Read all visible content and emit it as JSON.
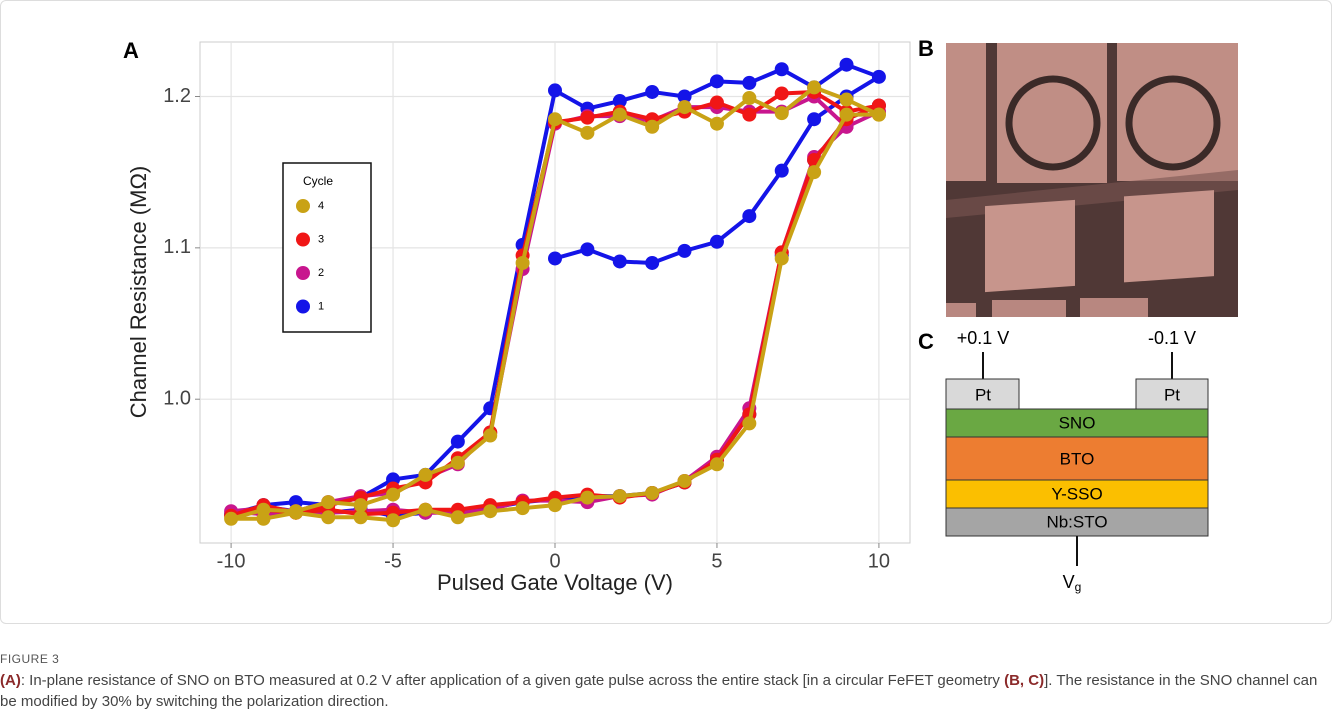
{
  "chart_data": {
    "type": "line",
    "panel": "A",
    "xlabel": "Pulsed Gate Voltage (V)",
    "ylabel": "Channel Resistance (MΩ)",
    "x": [
      0,
      1,
      2,
      3,
      4,
      5,
      6,
      7,
      8,
      9,
      10,
      9,
      8,
      7,
      6,
      5,
      4,
      3,
      2,
      1,
      0,
      -1,
      -2,
      -3,
      -4,
      -5,
      -6,
      -7,
      -8,
      -9,
      -10,
      -9,
      -8,
      -7,
      -6,
      -5,
      -4,
      -3,
      -2,
      -1,
      0,
      1,
      2,
      3,
      4,
      5,
      6,
      7,
      8,
      9,
      10
    ],
    "xlim": [
      -10.96,
      10.96
    ],
    "xticks": [
      -10,
      -5,
      0,
      5,
      10
    ],
    "ylim": [
      0.905,
      1.236
    ],
    "yticks": [
      {
        "value": 1,
        "label": "1.0"
      },
      1.1,
      1.2
    ],
    "grid": true,
    "legend_title": "Cycle",
    "series": [
      {
        "name": "4",
        "color": "#c9a215",
        "values": [
          null,
          null,
          null,
          null,
          null,
          null,
          null,
          null,
          null,
          null,
          1.188,
          1.198,
          1.206,
          1.189,
          1.199,
          1.182,
          1.193,
          1.18,
          1.188,
          1.176,
          1.185,
          1.09,
          0.976,
          0.958,
          0.95,
          0.937,
          0.93,
          0.932,
          0.926,
          0.927,
          0.921,
          0.921,
          0.925,
          0.922,
          0.922,
          0.92,
          0.927,
          0.922,
          0.926,
          0.928,
          0.93,
          0.935,
          0.936,
          0.938,
          0.946,
          0.957,
          0.984,
          1.093,
          1.15,
          1.188,
          1.188
        ]
      },
      {
        "name": "3",
        "color": "#f01616",
        "values": [
          null,
          null,
          null,
          null,
          null,
          null,
          null,
          null,
          null,
          null,
          1.194,
          1.19,
          1.203,
          1.202,
          1.188,
          1.196,
          1.19,
          1.185,
          1.19,
          1.186,
          1.183,
          1.095,
          0.978,
          0.961,
          0.945,
          0.941,
          0.935,
          0.93,
          0.925,
          0.93,
          0.923,
          0.927,
          0.925,
          0.927,
          0.924,
          0.925,
          0.927,
          0.927,
          0.93,
          0.932,
          0.935,
          0.937,
          0.935,
          0.938,
          0.945,
          0.96,
          0.99,
          1.097,
          1.158,
          1.185,
          1.194
        ]
      },
      {
        "name": "2",
        "color": "#c8168e",
        "values": [
          null,
          null,
          null,
          null,
          null,
          null,
          null,
          null,
          null,
          null,
          1.19,
          1.18,
          1.2,
          1.19,
          1.19,
          1.193,
          1.193,
          1.184,
          1.187,
          1.187,
          1.182,
          1.086,
          0.978,
          0.957,
          0.948,
          0.938,
          0.936,
          0.932,
          0.926,
          0.928,
          0.926,
          0.924,
          0.926,
          0.925,
          0.926,
          0.927,
          0.925,
          0.925,
          0.927,
          0.933,
          0.933,
          0.932,
          0.936,
          0.937,
          0.946,
          0.962,
          0.994,
          1.097,
          1.16,
          1.18,
          1.19
        ]
      },
      {
        "name": "1",
        "color": "#1414e8",
        "values": [
          1.093,
          1.099,
          1.091,
          1.09,
          1.098,
          1.104,
          1.121,
          1.151,
          1.185,
          1.2,
          1.213,
          1.221,
          1.206,
          1.218,
          1.209,
          1.21,
          1.2,
          1.203,
          1.197,
          1.192,
          1.204,
          1.102,
          0.994,
          0.972,
          0.95,
          0.947,
          0.935,
          0.93,
          0.932,
          0.93,
          0.924,
          0.929,
          0.926,
          0.925,
          0.927,
          0.923,
          0.925,
          0.926,
          0.928,
          0.932,
          0.934,
          0.936,
          0.936,
          0.938,
          0.945,
          0.96,
          0.99,
          1.095,
          1.158,
          1.185,
          1.194
        ]
      }
    ]
  },
  "panel_b": {
    "label": "B"
  },
  "panel_c": {
    "label": "C",
    "left_voltage": "+0.1 V",
    "right_voltage": "-0.1 V",
    "electrodes": [
      "Pt",
      "Pt"
    ],
    "layers": [
      "SNO",
      "BTO",
      "Y-SSO",
      "Nb:STO"
    ],
    "gate": {
      "symbol": "V",
      "subscript": "g"
    }
  },
  "caption": {
    "label": "FIGURE 3",
    "ref_a": "(A)",
    "text1": ": In-plane resistance of SNO on BTO measured at 0.2 V after application of a given gate pulse across the entire stack [in a circular FeFET geometry ",
    "ref_bc": "(B, C)",
    "text2": "]. The resistance in the SNO channel can be modified by 30% by switching the polarization direction."
  }
}
